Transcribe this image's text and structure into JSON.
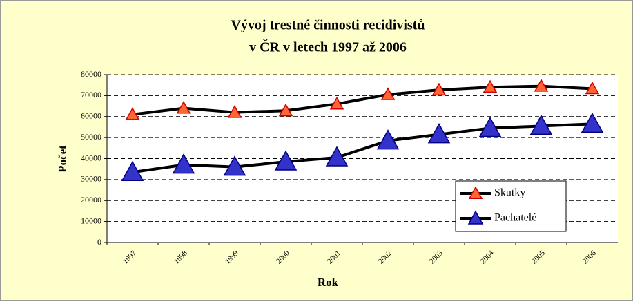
{
  "chart_data": {
    "type": "line",
    "title": [
      "Vývoj trestné činnosti recidivistů",
      "v ČR v letech 1997 až 2006"
    ],
    "x_label": "Rok",
    "y_label": "Počet",
    "categories": [
      "1997",
      "1998",
      "1999",
      "2000",
      "2001",
      "2002",
      "2003",
      "2004",
      "2005",
      "2006"
    ],
    "series": [
      {
        "name": "Skutky",
        "color": "#000000",
        "marker_color": "#ff6633",
        "marker_edge": "#cc0000",
        "marker_size": 9,
        "values": [
          61000,
          64000,
          62000,
          62800,
          66000,
          70500,
          72700,
          74000,
          74500,
          73300
        ]
      },
      {
        "name": "Pachatelé",
        "color": "#000000",
        "marker_color": "#3333cc",
        "marker_edge": "#000080",
        "marker_size": 15,
        "values": [
          33500,
          37000,
          36000,
          38500,
          40500,
          48500,
          51500,
          54500,
          55500,
          56500
        ]
      }
    ],
    "ylim": [
      0,
      80000
    ],
    "yticks": [
      0,
      10000,
      20000,
      30000,
      40000,
      50000,
      60000,
      70000,
      80000
    ],
    "grid": true,
    "legend": "lower right"
  }
}
